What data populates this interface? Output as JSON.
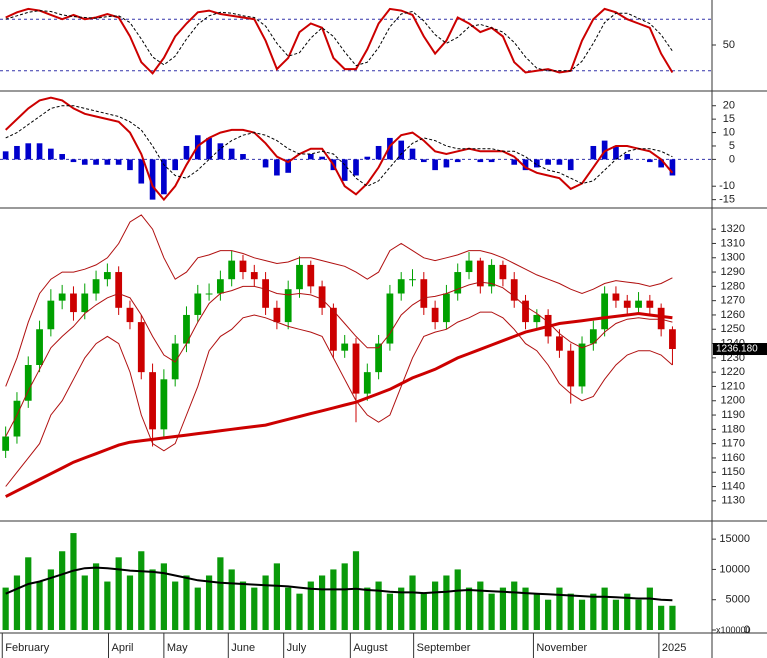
{
  "chart_data": [
    {
      "type": "line",
      "xlim": [
        -0.5,
        62.5
      ],
      "ylim": [
        0,
        100
      ],
      "yticks": [
        50
      ],
      "levels": [
        20,
        80
      ],
      "level_color": "#3333aa",
      "series": [
        {
          "color": "#cc0000",
          "width": 2,
          "dash": false,
          "values": [
            82,
            88,
            92,
            90,
            85,
            80,
            85,
            80,
            82,
            86,
            82,
            60,
            30,
            17,
            35,
            60,
            75,
            88,
            90,
            86,
            84,
            82,
            80,
            55,
            22,
            35,
            65,
            75,
            70,
            35,
            22,
            22,
            45,
            75,
            92,
            90,
            85,
            60,
            40,
            55,
            82,
            75,
            65,
            70,
            60,
            30,
            18,
            20,
            22,
            18,
            20,
            55,
            80,
            92,
            88,
            80,
            75,
            70,
            40,
            18
          ]
        },
        {
          "color": "#000000",
          "width": 1,
          "dash": true,
          "values": [
            80,
            84,
            88,
            90,
            89,
            85,
            83,
            82,
            81,
            83,
            84,
            76,
            57,
            36,
            27,
            37,
            57,
            74,
            84,
            88,
            87,
            84,
            82,
            72,
            52,
            37,
            41,
            58,
            70,
            60,
            42,
            26,
            30,
            47,
            71,
            86,
            89,
            78,
            62,
            52,
            59,
            71,
            74,
            70,
            65,
            53,
            36,
            23,
            20,
            20,
            20,
            31,
            52,
            76,
            87,
            87,
            81,
            75,
            62,
            43
          ]
        }
      ]
    },
    {
      "type": "combo",
      "xlim": [
        -0.5,
        62.5
      ],
      "ylim": [
        -17,
        24
      ],
      "yticks": [
        20,
        15,
        10,
        5,
        0,
        -10,
        -15
      ],
      "levels": [
        0
      ],
      "level_color": "#3333aa",
      "series": [
        {
          "kind": "bar",
          "color": "#0000cc",
          "values": [
            3,
            5,
            6,
            6,
            4,
            2,
            -1,
            -2,
            -2,
            -2,
            -2,
            -4,
            -9,
            -15,
            -13,
            -4,
            5,
            9,
            8,
            6,
            4,
            2,
            0,
            -3,
            -6,
            -5,
            0,
            2,
            1,
            -4,
            -8,
            -6,
            1,
            5,
            8,
            7,
            4,
            -1,
            -4,
            -3,
            -1,
            0,
            -1,
            -1,
            0,
            -2,
            -4,
            -3,
            -2,
            -2,
            -4,
            0,
            5,
            7,
            5,
            2,
            0,
            -1,
            -3,
            -6
          ]
        },
        {
          "kind": "line",
          "color": "#cc0000",
          "width": 2,
          "dash": false,
          "values": [
            11,
            15,
            19,
            22,
            23,
            22,
            19,
            17,
            16,
            15,
            14,
            10,
            2,
            -10,
            -15,
            -10,
            -2,
            5,
            8,
            10,
            11,
            11,
            10,
            6,
            1,
            -1,
            2,
            4,
            4,
            -2,
            -10,
            -13,
            -9,
            -3,
            5,
            9,
            10,
            7,
            3,
            2,
            3,
            4,
            3,
            3,
            3,
            1,
            -3,
            -5,
            -6,
            -7,
            -11,
            -9,
            -3,
            3,
            5,
            5,
            4,
            3,
            0,
            -5
          ]
        },
        {
          "kind": "line",
          "color": "#000000",
          "width": 1,
          "dash": true,
          "values": [
            8,
            10,
            13,
            16,
            19,
            20,
            20,
            19,
            18,
            17,
            16,
            14,
            11,
            5,
            -2,
            -6,
            -7,
            -4,
            0,
            4,
            7,
            9,
            10,
            9,
            7,
            4,
            2,
            2,
            3,
            2,
            -2,
            -7,
            -10,
            -8,
            -3,
            2,
            6,
            8,
            7,
            5,
            4,
            4,
            4,
            4,
            3,
            3,
            1,
            -2,
            -4,
            -5,
            -7,
            -9,
            -8,
            -4,
            0,
            3,
            4,
            4,
            3,
            1
          ]
        }
      ]
    },
    {
      "type": "candlestick",
      "xlim": [
        -0.5,
        62.5
      ],
      "ylim": [
        1118,
        1332
      ],
      "yticks": [
        1130,
        1140,
        1150,
        1160,
        1170,
        1180,
        1190,
        1200,
        1210,
        1220,
        1230,
        1240,
        1250,
        1260,
        1270,
        1280,
        1290,
        1300,
        1310,
        1320
      ],
      "up_color": "#00a000",
      "down_color": "#cc0000",
      "open": [
        1165,
        1175,
        1200,
        1225,
        1250,
        1270,
        1275,
        1262,
        1275,
        1285,
        1290,
        1265,
        1255,
        1220,
        1180,
        1215,
        1240,
        1260,
        1275,
        1275,
        1285,
        1298,
        1290,
        1285,
        1265,
        1255,
        1278,
        1295,
        1280,
        1265,
        1235,
        1240,
        1205,
        1220,
        1240,
        1275,
        1285,
        1285,
        1265,
        1255,
        1275,
        1290,
        1298,
        1280,
        1295,
        1285,
        1270,
        1255,
        1260,
        1245,
        1235,
        1210,
        1240,
        1250,
        1275,
        1270,
        1265,
        1270,
        1265,
        1250
      ],
      "high": [
        1182,
        1206,
        1231,
        1256,
        1278,
        1281,
        1280,
        1282,
        1291,
        1296,
        1294,
        1270,
        1260,
        1226,
        1222,
        1246,
        1266,
        1281,
        1282,
        1291,
        1305,
        1302,
        1295,
        1290,
        1270,
        1284,
        1301,
        1298,
        1284,
        1268,
        1246,
        1244,
        1226,
        1246,
        1281,
        1290,
        1292,
        1290,
        1270,
        1281,
        1296,
        1304,
        1300,
        1299,
        1298,
        1290,
        1274,
        1264,
        1264,
        1250,
        1240,
        1245,
        1256,
        1280,
        1280,
        1274,
        1276,
        1274,
        1268,
        1252
      ],
      "low": [
        1160,
        1170,
        1195,
        1220,
        1245,
        1264,
        1256,
        1257,
        1270,
        1280,
        1260,
        1250,
        1215,
        1168,
        1175,
        1210,
        1234,
        1255,
        1270,
        1270,
        1280,
        1285,
        1280,
        1260,
        1250,
        1250,
        1272,
        1275,
        1260,
        1230,
        1230,
        1185,
        1200,
        1215,
        1235,
        1270,
        1280,
        1260,
        1250,
        1250,
        1270,
        1285,
        1275,
        1275,
        1280,
        1265,
        1250,
        1250,
        1240,
        1230,
        1198,
        1205,
        1235,
        1245,
        1265,
        1260,
        1260,
        1260,
        1245,
        1225
      ],
      "close": [
        1175,
        1200,
        1225,
        1250,
        1270,
        1275,
        1262,
        1275,
        1285,
        1290,
        1265,
        1255,
        1220,
        1180,
        1215,
        1240,
        1260,
        1275,
        1275,
        1285,
        1298,
        1290,
        1285,
        1265,
        1255,
        1278,
        1295,
        1280,
        1265,
        1235,
        1240,
        1205,
        1220,
        1240,
        1275,
        1285,
        1285,
        1265,
        1255,
        1275,
        1290,
        1298,
        1280,
        1295,
        1285,
        1270,
        1255,
        1260,
        1245,
        1235,
        1210,
        1240,
        1250,
        1275,
        1270,
        1265,
        1270,
        1265,
        1250,
        1236.18
      ],
      "series": [
        {
          "color": "#b01010",
          "width": 1,
          "values": [
            1210,
            1230,
            1255,
            1275,
            1285,
            1290,
            1290,
            1292,
            1295,
            1300,
            1310,
            1325,
            1330,
            1320,
            1300,
            1285,
            1290,
            1300,
            1302,
            1305,
            1305,
            1303,
            1300,
            1298,
            1296,
            1297,
            1300,
            1300,
            1298,
            1296,
            1294,
            1290,
            1285,
            1290,
            1305,
            1310,
            1305,
            1300,
            1298,
            1300,
            1302,
            1305,
            1305,
            1303,
            1300,
            1296,
            1292,
            1288,
            1285,
            1282,
            1278,
            1275,
            1278,
            1282,
            1284,
            1283,
            1282,
            1280,
            1282,
            1286
          ]
        },
        {
          "color": "#b01010",
          "width": 1,
          "values": [
            1175,
            1190,
            1207,
            1222,
            1237,
            1245,
            1252,
            1261,
            1267,
            1272,
            1275,
            1272,
            1260,
            1245,
            1232,
            1227,
            1240,
            1255,
            1268,
            1275,
            1277,
            1280,
            1280,
            1278,
            1275,
            1274,
            1275,
            1274,
            1271,
            1263,
            1254,
            1245,
            1237,
            1237,
            1247,
            1260,
            1267,
            1272,
            1273,
            1275,
            1278,
            1281,
            1283,
            1282,
            1279,
            1273,
            1266,
            1261,
            1255,
            1247,
            1241,
            1237,
            1240,
            1248,
            1254,
            1257,
            1258,
            1257,
            1257,
            1255
          ]
        },
        {
          "color": "#b01010",
          "width": 1,
          "values": [
            1140,
            1150,
            1160,
            1170,
            1190,
            1200,
            1215,
            1230,
            1240,
            1245,
            1240,
            1220,
            1190,
            1170,
            1165,
            1170,
            1190,
            1210,
            1235,
            1245,
            1250,
            1258,
            1260,
            1258,
            1255,
            1252,
            1250,
            1248,
            1245,
            1230,
            1215,
            1200,
            1190,
            1185,
            1190,
            1210,
            1230,
            1245,
            1248,
            1250,
            1255,
            1258,
            1262,
            1262,
            1258,
            1250,
            1240,
            1235,
            1225,
            1212,
            1205,
            1200,
            1203,
            1215,
            1225,
            1232,
            1235,
            1235,
            1232,
            1225
          ]
        },
        {
          "color": "#cc0000",
          "width": 3,
          "values": [
            1133,
            1137,
            1141,
            1145,
            1149,
            1153,
            1157,
            1160,
            1163,
            1166,
            1169,
            1171,
            1172,
            1173,
            1174,
            1175,
            1176,
            1177,
            1178,
            1179,
            1180,
            1181,
            1182,
            1183,
            1185,
            1187,
            1189,
            1191,
            1193,
            1195,
            1197,
            1199,
            1202,
            1205,
            1208,
            1212,
            1216,
            1219,
            1222,
            1226,
            1230,
            1233,
            1236,
            1239,
            1242,
            1245,
            1248,
            1250,
            1252,
            1254,
            1255,
            1256,
            1257,
            1258,
            1259,
            1260,
            1261,
            1260,
            1259,
            1258
          ]
        }
      ],
      "last_price": {
        "value": 1236.18,
        "label": "1236.180"
      }
    },
    {
      "type": "bar",
      "xlim": [
        -0.5,
        62.5
      ],
      "ylim": [
        0,
        17500
      ],
      "yticks": [
        0,
        5000,
        10000,
        15000
      ],
      "unit_label": "x100000",
      "series": [
        {
          "kind": "bar",
          "color": "#0a9a0a",
          "values": [
            7000,
            9000,
            12000,
            8000,
            10000,
            13000,
            16000,
            9000,
            11000,
            8000,
            12000,
            9000,
            13000,
            10000,
            11000,
            8000,
            9000,
            7000,
            9000,
            12000,
            10000,
            8000,
            7000,
            9000,
            11000,
            7000,
            6000,
            8000,
            9000,
            10000,
            11000,
            13000,
            7000,
            8000,
            6000,
            7000,
            9000,
            6000,
            8000,
            9000,
            10000,
            7000,
            8000,
            6000,
            7000,
            8000,
            7000,
            6000,
            5000,
            7000,
            6000,
            5000,
            6000,
            7000,
            5000,
            6000,
            5000,
            7000,
            4000,
            4000
          ]
        },
        {
          "kind": "line",
          "color": "#000000",
          "width": 2,
          "dash": false,
          "values": [
            6000,
            6800,
            7600,
            8000,
            8600,
            9200,
            9800,
            10200,
            10300,
            10200,
            10000,
            9800,
            9700,
            9600,
            9400,
            9000,
            8600,
            8200,
            8000,
            7800,
            7700,
            7600,
            7500,
            7400,
            7300,
            7200,
            7000,
            6800,
            6700,
            6700,
            6700,
            6800,
            6600,
            6500,
            6300,
            6200,
            6200,
            6100,
            6200,
            6300,
            6500,
            6600,
            6500,
            6400,
            6300,
            6200,
            6100,
            6000,
            5900,
            5800,
            5700,
            5600,
            5500,
            5500,
            5400,
            5300,
            5200,
            5200,
            5000,
            4900
          ]
        }
      ],
      "xticks": [
        {
          "value": -0.3,
          "label": "February"
        },
        {
          "value": 9.1,
          "label": "April"
        },
        {
          "value": 14,
          "label": "May"
        },
        {
          "value": 19.7,
          "label": "June"
        },
        {
          "value": 24.6,
          "label": "July"
        },
        {
          "value": 30.5,
          "label": "August"
        },
        {
          "value": 36.1,
          "label": "September"
        },
        {
          "value": 46.7,
          "label": "November"
        },
        {
          "value": 57.8,
          "label": "2025"
        }
      ]
    }
  ]
}
